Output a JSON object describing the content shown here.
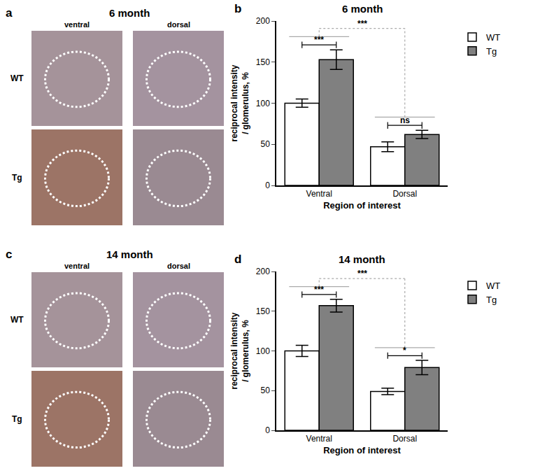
{
  "image_panels": [
    {
      "panel": "a",
      "title": "6 month",
      "columns": [
        "ventral",
        "dorsal"
      ],
      "rows": [
        "WT",
        "Tg"
      ]
    },
    {
      "panel": "c",
      "title": "14 month",
      "columns": [
        "ventral",
        "dorsal"
      ],
      "rows": [
        "WT",
        "Tg"
      ]
    }
  ],
  "chart_data": [
    {
      "type": "bar",
      "panel": "b",
      "title": "6 month",
      "x_label": "Region of interest",
      "y_label": "reciprocal intensity / glomerulus, %",
      "categories": [
        "Ventral",
        "Dorsal"
      ],
      "series": [
        {
          "name": "WT",
          "color": "#ffffff",
          "values": [
            100,
            47
          ],
          "errors": [
            5,
            6
          ]
        },
        {
          "name": "Tg",
          "color": "#808080",
          "values": [
            153,
            62
          ],
          "errors": [
            12,
            5
          ]
        }
      ],
      "ylim": [
        0,
        200
      ],
      "yticks": [
        0,
        50,
        100,
        150,
        200
      ],
      "grid": false,
      "legend": "top right",
      "significance": [
        {
          "category": "Ventral",
          "label": "***"
        },
        {
          "category": "Dorsal",
          "label": "ns"
        },
        {
          "between": [
            "Ventral",
            "Dorsal"
          ],
          "label": "***"
        }
      ]
    },
    {
      "type": "bar",
      "panel": "d",
      "title": "14 month",
      "x_label": "Region of interest",
      "y_label": "reciprocal intensity / glomerulus, %",
      "categories": [
        "Ventral",
        "Dorsal"
      ],
      "series": [
        {
          "name": "WT",
          "color": "#ffffff",
          "values": [
            100,
            49
          ],
          "errors": [
            7,
            4
          ]
        },
        {
          "name": "Tg",
          "color": "#808080",
          "values": [
            157,
            79
          ],
          "errors": [
            8,
            9
          ]
        }
      ],
      "ylim": [
        0,
        200
      ],
      "yticks": [
        0,
        50,
        100,
        150,
        200
      ],
      "grid": false,
      "legend": "top right",
      "significance": [
        {
          "category": "Ventral",
          "label": "***"
        },
        {
          "category": "Dorsal",
          "label": "*"
        },
        {
          "between": [
            "Ventral",
            "Dorsal"
          ],
          "label": "***"
        }
      ]
    }
  ]
}
